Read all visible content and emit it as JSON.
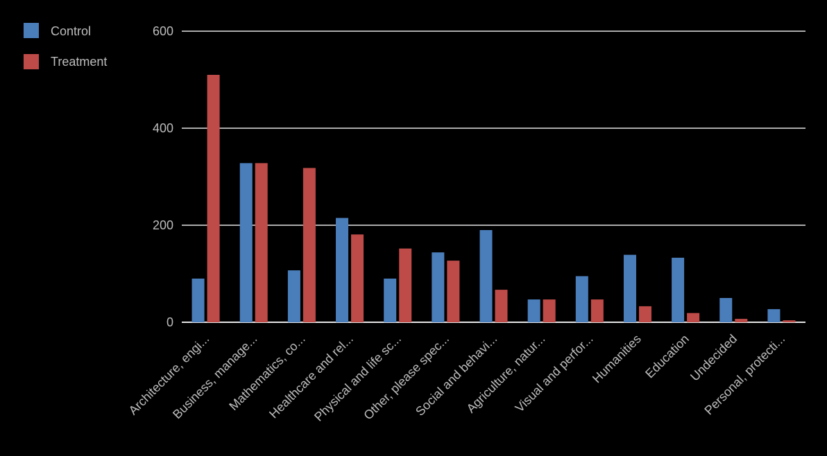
{
  "colors": {
    "background": "#000000",
    "control": "#4a7ebb",
    "treatment": "#be4b48",
    "grid": "#e6e6e6",
    "text": "#bdbdbd"
  },
  "chart_data": {
    "type": "bar",
    "categories": [
      "Architecture, engi...",
      "Business, manage...",
      "Mathematics, co...",
      "Healthcare and rel...",
      "Physical and life sc...",
      "Other, please spec...",
      "Social and behavi...",
      "Agriculture, natur...",
      "Visual and perfor...",
      "Humanities",
      "Education",
      "Undecided",
      "Personal, protecti..."
    ],
    "series": [
      {
        "name": "Control",
        "color": "#4a7ebb",
        "values": [
          90,
          328,
          107,
          215,
          90,
          144,
          190,
          47,
          95,
          139,
          133,
          50,
          27
        ]
      },
      {
        "name": "Treatment",
        "color": "#be4b48",
        "values": [
          510,
          328,
          318,
          181,
          152,
          127,
          67,
          47,
          47,
          33,
          19,
          7,
          4
        ]
      }
    ],
    "yticks": [
      "0",
      "200",
      "400",
      "600"
    ],
    "ylim": [
      0,
      600
    ],
    "grid": true,
    "legend": "top-left"
  }
}
